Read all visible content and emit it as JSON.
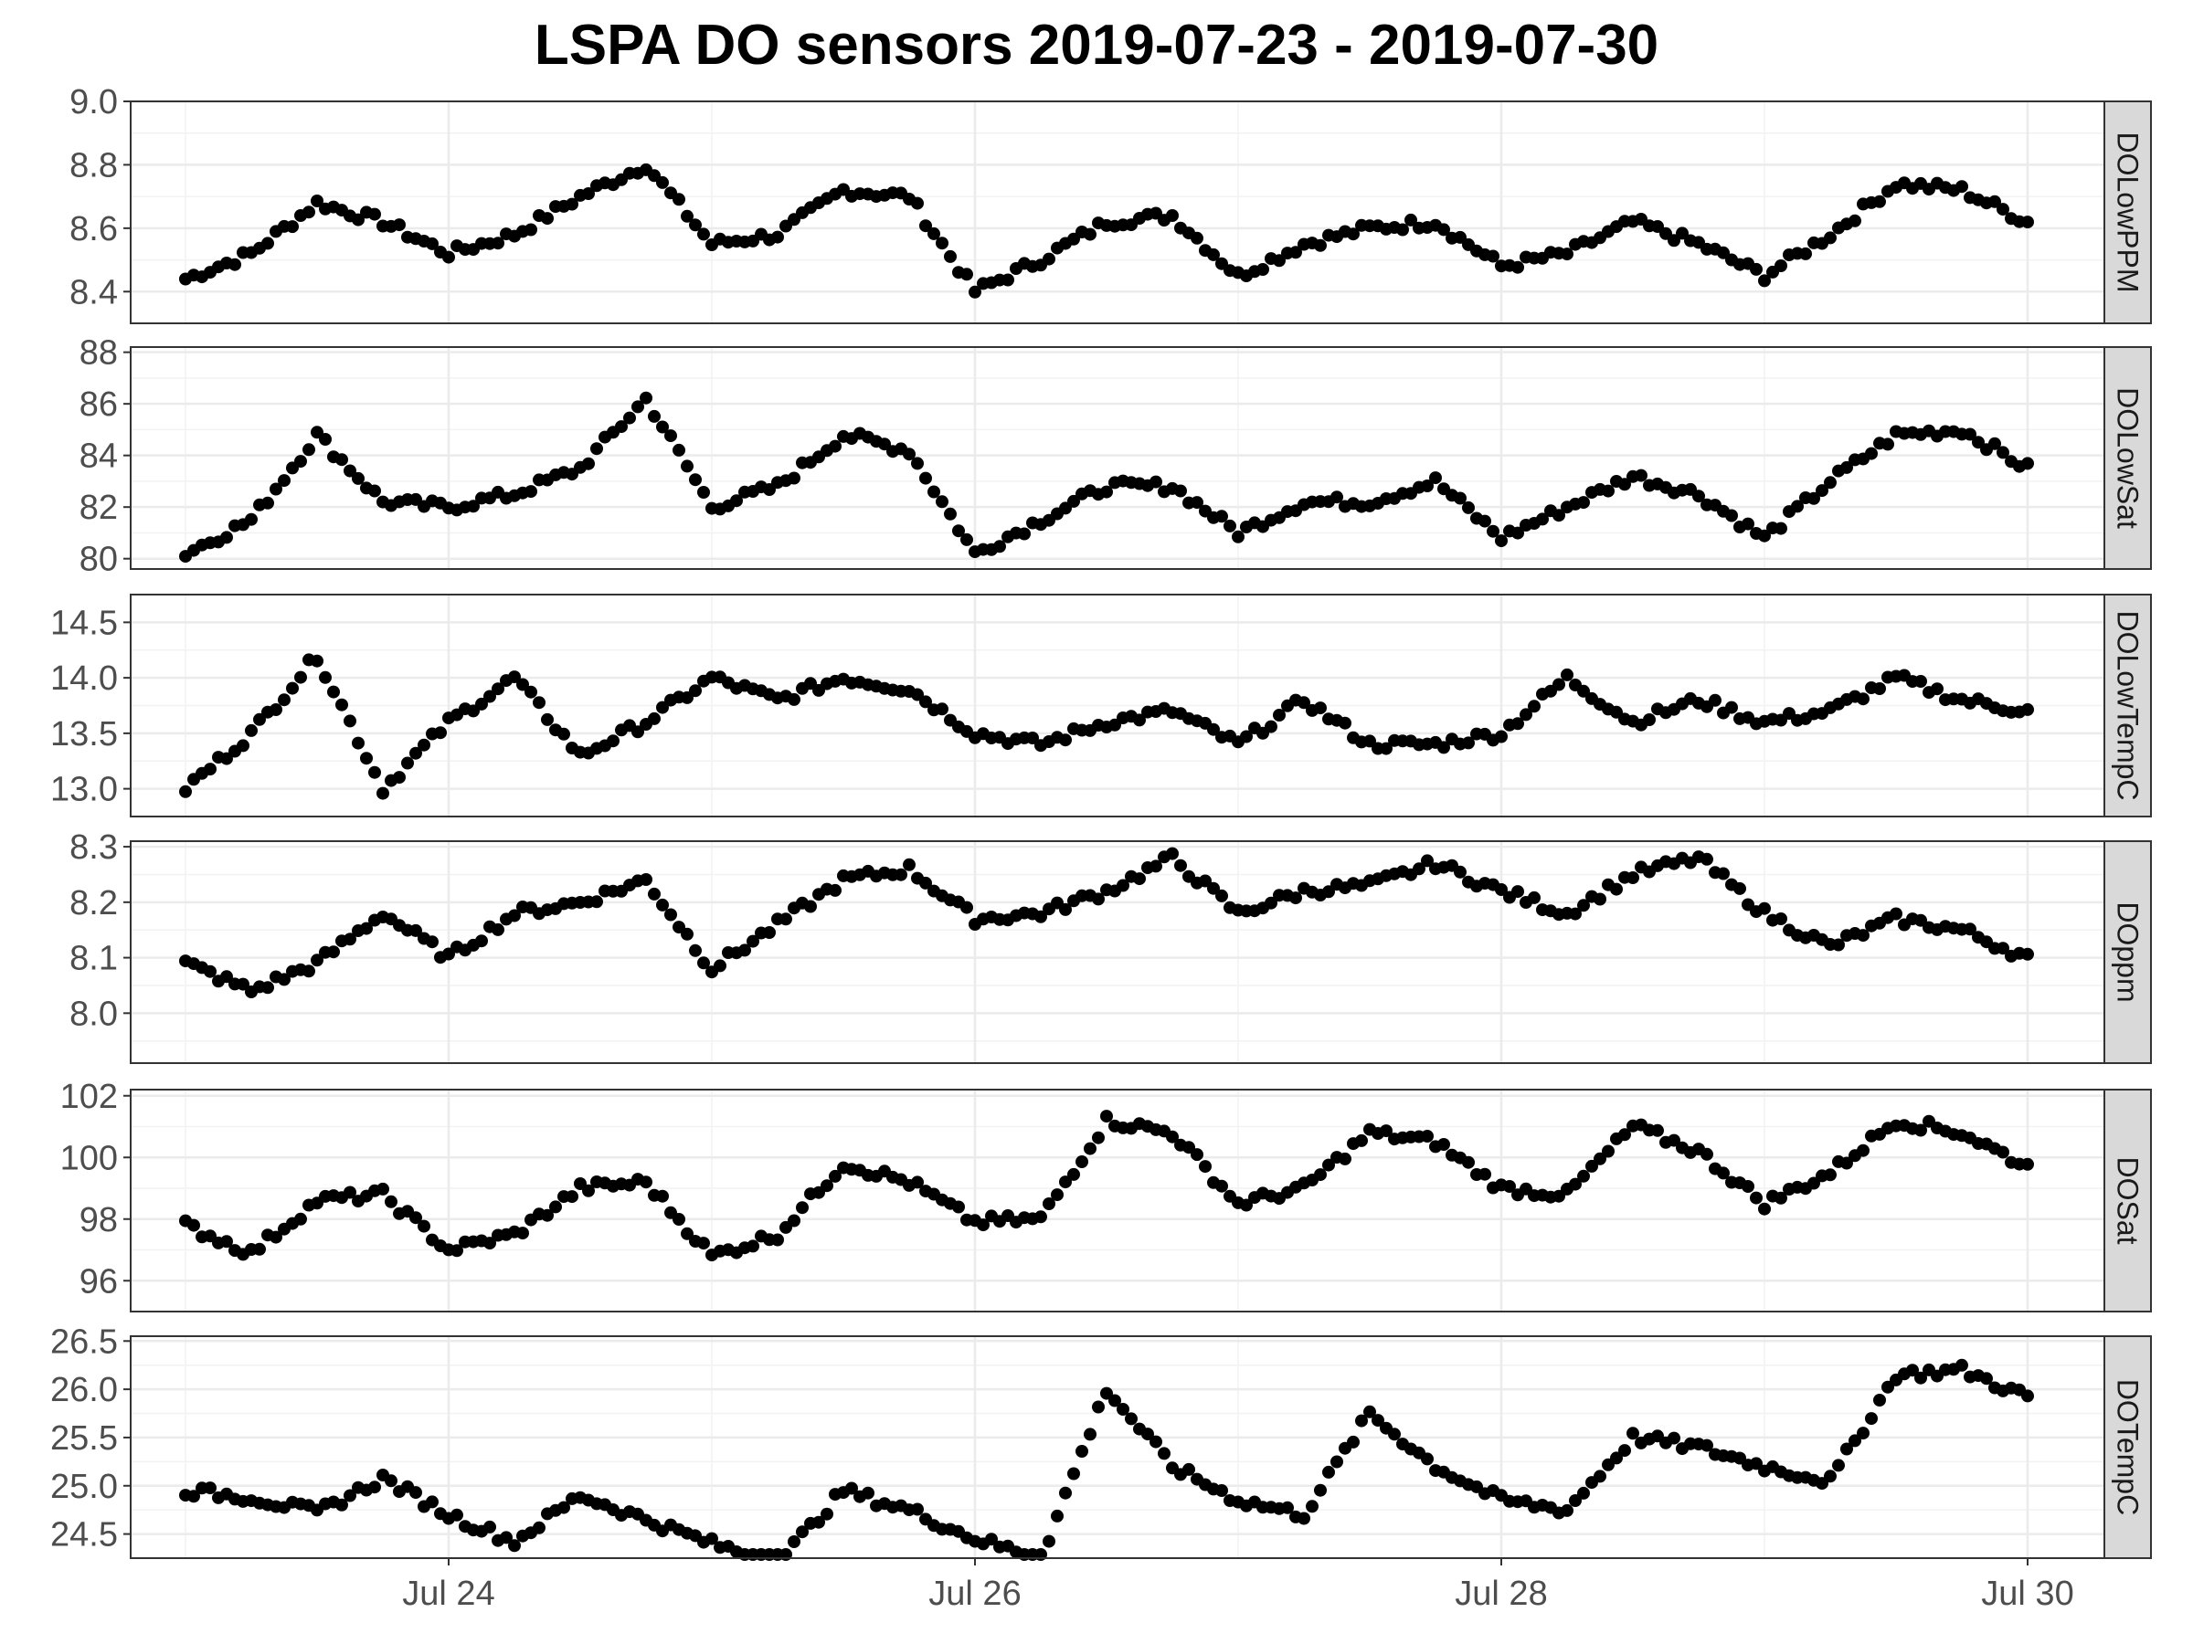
{
  "chart_data": {
    "type": "scatter",
    "title": "LSPA DO sensors 2019-07-23 - 2019-07-30",
    "xlabel": "",
    "ylabel": "",
    "grid": true,
    "legend": "none",
    "point_color": "#000000",
    "strip_fill": "#d9d9d9",
    "x_axis": {
      "type": "date",
      "range": [
        "2019-07-22T19:00",
        "2019-07-30T07:00"
      ],
      "ticks": [
        {
          "value": "2019-07-24T00:00",
          "label": "Jul 24"
        },
        {
          "value": "2019-07-26T00:00",
          "label": "Jul 26"
        },
        {
          "value": "2019-07-28T00:00",
          "label": "Jul 28"
        },
        {
          "value": "2019-07-30T00:00",
          "label": "Jul 30"
        }
      ]
    },
    "panels": [
      {
        "name": "DOLowPPM",
        "ylim": [
          8.3,
          9.0
        ],
        "yticks": [
          8.4,
          8.6,
          8.8,
          9.0
        ],
        "ytick_labels": [
          "8.4",
          "8.6",
          "8.8",
          "9.0"
        ],
        "x": [
          "2019-07-23T00:00",
          "2019-07-23T06:00",
          "2019-07-23T12:00",
          "2019-07-23T18:00",
          "2019-07-24T00:00",
          "2019-07-24T06:00",
          "2019-07-24T12:00",
          "2019-07-24T18:00",
          "2019-07-25T00:00",
          "2019-07-25T06:00",
          "2019-07-25T12:00",
          "2019-07-25T18:00",
          "2019-07-26T00:00",
          "2019-07-26T06:00",
          "2019-07-26T12:00",
          "2019-07-26T18:00",
          "2019-07-27T00:00",
          "2019-07-27T06:00",
          "2019-07-27T12:00",
          "2019-07-27T18:00",
          "2019-07-28T00:00",
          "2019-07-28T06:00",
          "2019-07-28T12:00",
          "2019-07-28T18:00",
          "2019-07-29T00:00",
          "2019-07-29T06:00",
          "2019-07-29T12:00",
          "2019-07-29T18:00",
          "2019-07-30T00:00"
        ],
        "y": [
          8.44,
          8.52,
          8.68,
          8.62,
          8.52,
          8.58,
          8.7,
          8.8,
          8.55,
          8.58,
          8.72,
          8.7,
          8.4,
          8.5,
          8.62,
          8.64,
          8.45,
          8.55,
          8.6,
          8.62,
          8.48,
          8.52,
          8.62,
          8.55,
          8.45,
          8.58,
          8.74,
          8.72,
          8.62
        ]
      },
      {
        "name": "DOLowSat",
        "ylim": [
          79.6,
          88.2
        ],
        "yticks": [
          80,
          82,
          84,
          86,
          88
        ],
        "ytick_labels": [
          "80",
          "82",
          "84",
          "86",
          "88"
        ],
        "x": [
          "2019-07-23T00:00",
          "2019-07-23T06:00",
          "2019-07-23T12:00",
          "2019-07-23T18:00",
          "2019-07-24T00:00",
          "2019-07-24T06:00",
          "2019-07-24T12:00",
          "2019-07-24T18:00",
          "2019-07-25T00:00",
          "2019-07-25T06:00",
          "2019-07-25T12:00",
          "2019-07-25T18:00",
          "2019-07-26T00:00",
          "2019-07-26T06:00",
          "2019-07-26T12:00",
          "2019-07-26T18:00",
          "2019-07-27T00:00",
          "2019-07-27T06:00",
          "2019-07-27T12:00",
          "2019-07-27T18:00",
          "2019-07-28T00:00",
          "2019-07-28T06:00",
          "2019-07-28T12:00",
          "2019-07-28T18:00",
          "2019-07-29T00:00",
          "2019-07-29T06:00",
          "2019-07-29T12:00",
          "2019-07-29T18:00",
          "2019-07-30T00:00"
        ],
        "y": [
          80.2,
          81.5,
          84.8,
          82.2,
          82.0,
          82.5,
          83.5,
          86.2,
          82.0,
          82.8,
          84.8,
          84.2,
          80.2,
          81.5,
          82.8,
          82.8,
          81.0,
          82.2,
          82.2,
          83.0,
          80.8,
          82.0,
          83.2,
          82.5,
          80.8,
          83.0,
          84.8,
          85.0,
          83.5
        ]
      },
      {
        "name": "DOLowTempC",
        "ylim": [
          12.75,
          14.75
        ],
        "yticks": [
          13.0,
          13.5,
          14.0,
          14.5
        ],
        "ytick_labels": [
          "13.0",
          "13.5",
          "14.0",
          "14.5"
        ],
        "x": [
          "2019-07-23T00:00",
          "2019-07-23T06:00",
          "2019-07-23T12:00",
          "2019-07-23T18:00",
          "2019-07-24T00:00",
          "2019-07-24T06:00",
          "2019-07-24T12:00",
          "2019-07-24T18:00",
          "2019-07-25T00:00",
          "2019-07-25T06:00",
          "2019-07-25T12:00",
          "2019-07-25T18:00",
          "2019-07-26T00:00",
          "2019-07-26T06:00",
          "2019-07-26T12:00",
          "2019-07-26T18:00",
          "2019-07-27T00:00",
          "2019-07-27T06:00",
          "2019-07-27T12:00",
          "2019-07-27T18:00",
          "2019-07-28T00:00",
          "2019-07-28T06:00",
          "2019-07-28T12:00",
          "2019-07-28T18:00",
          "2019-07-29T00:00",
          "2019-07-29T06:00",
          "2019-07-29T12:00",
          "2019-07-29T18:00",
          "2019-07-30T00:00"
        ],
        "y": [
          13.0,
          13.5,
          14.2,
          13.0,
          13.6,
          14.0,
          13.3,
          13.6,
          14.0,
          13.8,
          14.0,
          13.9,
          13.5,
          13.4,
          13.6,
          13.7,
          13.4,
          13.8,
          13.4,
          13.4,
          13.5,
          14.0,
          13.6,
          13.8,
          13.6,
          13.7,
          14.0,
          13.8,
          13.7
        ]
      },
      {
        "name": "DOppm",
        "ylim": [
          7.91,
          8.31
        ],
        "yticks": [
          8.0,
          8.1,
          8.2,
          8.3
        ],
        "ytick_labels": [
          "8.0",
          "8.1",
          "8.2",
          "8.3"
        ],
        "x": [
          "2019-07-23T00:00",
          "2019-07-23T06:00",
          "2019-07-23T12:00",
          "2019-07-23T18:00",
          "2019-07-24T00:00",
          "2019-07-24T06:00",
          "2019-07-24T12:00",
          "2019-07-24T18:00",
          "2019-07-25T00:00",
          "2019-07-25T06:00",
          "2019-07-25T12:00",
          "2019-07-25T18:00",
          "2019-07-26T00:00",
          "2019-07-26T06:00",
          "2019-07-26T12:00",
          "2019-07-26T18:00",
          "2019-07-27T00:00",
          "2019-07-27T06:00",
          "2019-07-27T12:00",
          "2019-07-27T18:00",
          "2019-07-28T00:00",
          "2019-07-28T06:00",
          "2019-07-28T12:00",
          "2019-07-28T18:00",
          "2019-07-29T00:00",
          "2019-07-29T06:00",
          "2019-07-29T12:00",
          "2019-07-29T18:00",
          "2019-07-30T00:00"
        ],
        "y": [
          8.09,
          8.04,
          8.09,
          8.18,
          8.1,
          8.18,
          8.2,
          8.24,
          8.08,
          8.16,
          8.24,
          8.26,
          8.17,
          8.18,
          8.22,
          8.28,
          8.18,
          8.22,
          8.23,
          8.27,
          8.22,
          8.18,
          8.25,
          8.28,
          8.18,
          8.12,
          8.17,
          8.15,
          8.1
        ]
      },
      {
        "name": "DOSat",
        "ylim": [
          95.0,
          102.2
        ],
        "yticks": [
          96,
          98,
          100,
          102
        ],
        "ytick_labels": [
          "96",
          "98",
          "100",
          "102"
        ],
        "x": [
          "2019-07-23T00:00",
          "2019-07-23T06:00",
          "2019-07-23T12:00",
          "2019-07-23T18:00",
          "2019-07-24T00:00",
          "2019-07-24T06:00",
          "2019-07-24T12:00",
          "2019-07-24T18:00",
          "2019-07-25T00:00",
          "2019-07-25T06:00",
          "2019-07-25T12:00",
          "2019-07-25T18:00",
          "2019-07-26T00:00",
          "2019-07-26T06:00",
          "2019-07-26T12:00",
          "2019-07-26T18:00",
          "2019-07-27T00:00",
          "2019-07-27T06:00",
          "2019-07-27T12:00",
          "2019-07-27T18:00",
          "2019-07-28T00:00",
          "2019-07-28T06:00",
          "2019-07-28T12:00",
          "2019-07-28T18:00",
          "2019-07-29T00:00",
          "2019-07-29T06:00",
          "2019-07-29T12:00",
          "2019-07-29T18:00",
          "2019-07-30T00:00"
        ],
        "y": [
          97.8,
          96.9,
          98.6,
          98.8,
          97.0,
          97.5,
          99.0,
          99.2,
          96.8,
          97.5,
          99.8,
          99.2,
          97.9,
          98.0,
          101.2,
          100.8,
          98.5,
          99.0,
          100.8,
          100.5,
          99.0,
          98.8,
          101.0,
          100.2,
          98.5,
          99.5,
          101.2,
          100.8,
          99.7
        ]
      },
      {
        "name": "DOTempC",
        "ylim": [
          24.25,
          26.55
        ],
        "yticks": [
          24.5,
          25.0,
          25.5,
          26.0,
          26.5
        ],
        "ytick_labels": [
          "24.5",
          "25.0",
          "25.5",
          "26.0",
          "26.5"
        ],
        "x": [
          "2019-07-23T00:00",
          "2019-07-23T06:00",
          "2019-07-23T12:00",
          "2019-07-23T18:00",
          "2019-07-24T00:00",
          "2019-07-24T06:00",
          "2019-07-24T12:00",
          "2019-07-24T18:00",
          "2019-07-25T00:00",
          "2019-07-25T06:00",
          "2019-07-25T12:00",
          "2019-07-25T18:00",
          "2019-07-26T00:00",
          "2019-07-26T06:00",
          "2019-07-26T12:00",
          "2019-07-26T18:00",
          "2019-07-27T00:00",
          "2019-07-27T06:00",
          "2019-07-27T12:00",
          "2019-07-27T18:00",
          "2019-07-28T00:00",
          "2019-07-28T06:00",
          "2019-07-28T12:00",
          "2019-07-28T18:00",
          "2019-07-29T00:00",
          "2019-07-29T06:00",
          "2019-07-29T12:00",
          "2019-07-29T18:00",
          "2019-07-30T00:00"
        ],
        "y": [
          24.95,
          24.88,
          24.72,
          25.08,
          24.7,
          24.42,
          24.9,
          24.65,
          24.4,
          24.2,
          24.95,
          24.75,
          24.45,
          24.25,
          26.0,
          25.2,
          24.85,
          24.7,
          25.75,
          25.2,
          24.85,
          24.75,
          25.5,
          25.4,
          25.2,
          25.05,
          26.15,
          26.2,
          25.92
        ]
      }
    ]
  }
}
